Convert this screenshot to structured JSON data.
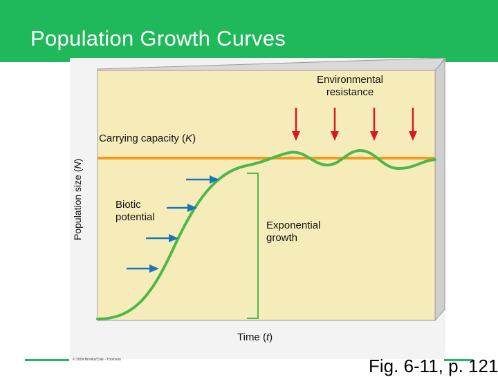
{
  "slide": {
    "title": "Population Growth Curves",
    "figure_reference": "Fig. 6-11, p. 121",
    "copyright": "© 2009 Brooks/Cole - Thomson"
  },
  "diagram": {
    "y_axis_label": "Population size (",
    "y_axis_var": "N",
    "y_axis_close": ")",
    "x_axis_label": "Time (",
    "x_axis_var": "t",
    "x_axis_close": ")",
    "environmental_resistance": "Environmental\nresistance",
    "carrying_capacity_label": "Carrying capacity (",
    "carrying_capacity_var": "K",
    "carrying_capacity_close": ")",
    "biotic_potential": "Biotic\npotential",
    "exponential_growth": "Exponential\ngrowth"
  },
  "colors": {
    "header_green": "#1fb85a",
    "curve_green": "#4db848",
    "capacity_orange": "#f39a1e",
    "resistance_arrow_red": "#d71920",
    "potential_arrow_blue": "#1b75bb",
    "panel_fill": "#f6ecb9"
  }
}
